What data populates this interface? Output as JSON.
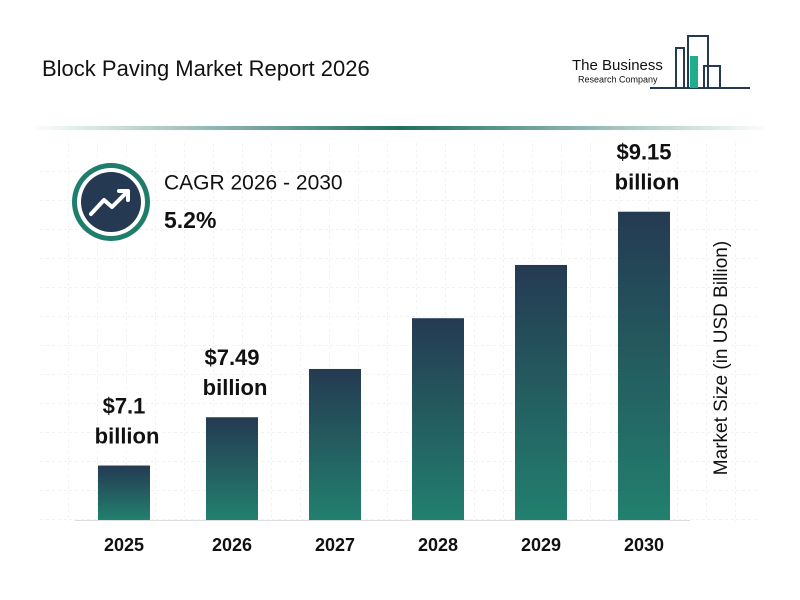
{
  "chart_data": {
    "type": "bar",
    "title": "Block Paving Market Report 2026",
    "logo": {
      "line1": "The Business",
      "line2": "Research Company"
    },
    "cagr_label": "CAGR 2026 - 2030",
    "cagr_value": "5.2%",
    "y_label": "Market Size (in USD Billion)",
    "categories": [
      "2025",
      "2026",
      "2027",
      "2028",
      "2029",
      "2030"
    ],
    "values": [
      7.1,
      7.49,
      7.88,
      8.29,
      8.72,
      9.15
    ],
    "value_labels": [
      "$7.1 billion",
      "$7.49 billion",
      null,
      null,
      null,
      "$9.15 billion"
    ],
    "color": [
      "#253a52",
      "#22806e"
    ],
    "ylim": [
      6.66,
      9.6
    ]
  }
}
